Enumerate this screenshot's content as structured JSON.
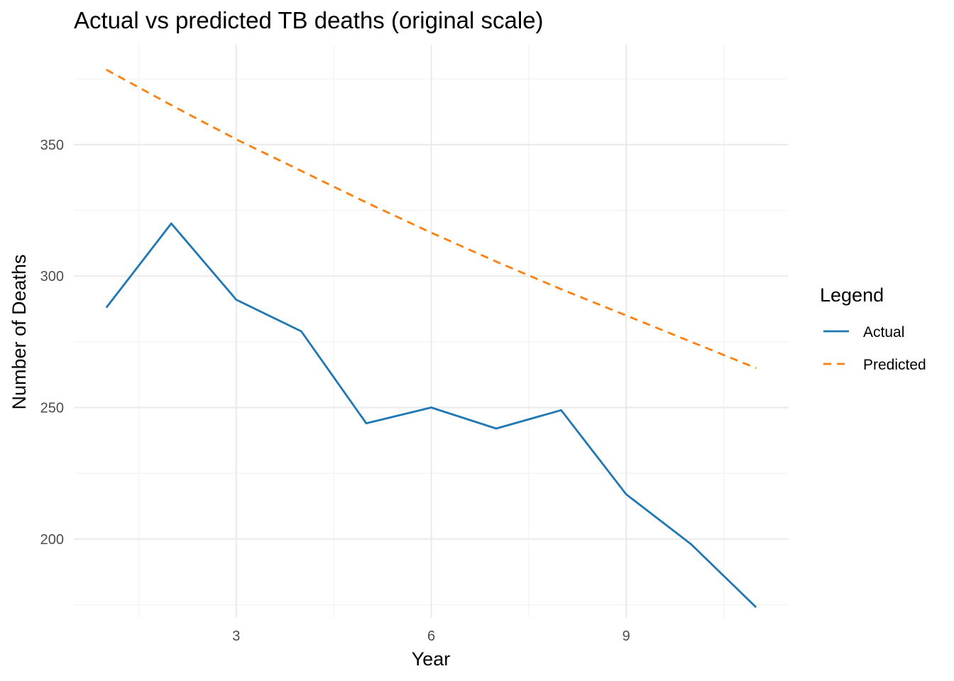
{
  "chart_data": {
    "type": "line",
    "title": "Actual vs predicted TB deaths (original scale)",
    "xlabel": "Year",
    "ylabel": "Number of Deaths",
    "x": [
      1,
      2,
      3,
      4,
      5,
      6,
      7,
      8,
      9,
      10,
      11
    ],
    "xlim": [
      0.5,
      11.5
    ],
    "ylim": [
      170,
      388
    ],
    "x_ticks": [
      3,
      6,
      9
    ],
    "y_ticks": [
      200,
      250,
      300,
      350
    ],
    "grid": true,
    "legend": {
      "title": "Legend",
      "placement": "right"
    },
    "series": [
      {
        "name": "Actual",
        "color": "#1f77b4",
        "line_style": "solid",
        "values": [
          288,
          320,
          291,
          279,
          244,
          250,
          242,
          249,
          217,
          198,
          174
        ]
      },
      {
        "name": "Predicted",
        "color": "#ff7f0e",
        "line_style": "dashed",
        "values": [
          378.5,
          365,
          352,
          340,
          328,
          316.5,
          305.5,
          295,
          285,
          275,
          265
        ]
      }
    ]
  }
}
